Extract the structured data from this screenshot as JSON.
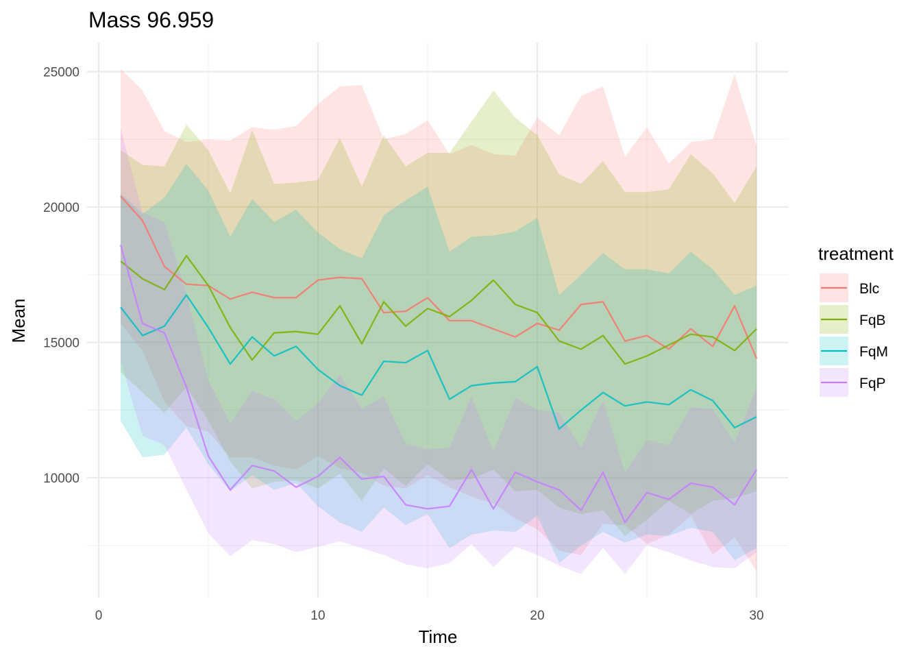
{
  "chart_data": {
    "type": "line",
    "title": "Mass 96.959",
    "xlabel": "Time",
    "ylabel": "Mean",
    "xlim": [
      0,
      30
    ],
    "ylim": [
      6000,
      26000
    ],
    "x_ticks": [
      0,
      10,
      20,
      30
    ],
    "y_ticks": [
      10000,
      15000,
      20000,
      25000
    ],
    "grid": true,
    "legend_title": "treatment",
    "legend_position": "right",
    "x": [
      1,
      2,
      3,
      4,
      5,
      6,
      7,
      8,
      9,
      10,
      11,
      12,
      13,
      14,
      15,
      16,
      17,
      18,
      19,
      20,
      21,
      22,
      23,
      24,
      25,
      26,
      27,
      28,
      29,
      30
    ],
    "series": [
      {
        "name": "Blc",
        "color": "#F8766D",
        "mean": [
          20400,
          19500,
          17800,
          17150,
          17100,
          16600,
          16850,
          16650,
          16650,
          17300,
          17400,
          17350,
          16100,
          16150,
          16650,
          15800,
          15800,
          15500,
          15200,
          15700,
          15450,
          16400,
          16500,
          15050,
          15250,
          14750,
          15500,
          14850,
          16350,
          14400
        ],
        "upper": [
          25100,
          24300,
          22800,
          22400,
          22500,
          22450,
          22950,
          22850,
          22990,
          23800,
          24450,
          24500,
          22500,
          22700,
          23200,
          21950,
          22300,
          21950,
          21900,
          23300,
          22650,
          24100,
          24450,
          21850,
          22950,
          21600,
          22400,
          22500,
          24900,
          22250
        ],
        "lower": [
          15700,
          14700,
          12800,
          11900,
          11700,
          10750,
          10750,
          10450,
          10300,
          10800,
          10350,
          10200,
          9700,
          9600,
          10100,
          9650,
          9300,
          9050,
          8500,
          8100,
          7300,
          7150,
          8300,
          8250,
          7550,
          7900,
          8600,
          7150,
          7800,
          6550
        ]
      },
      {
        "name": "FqB",
        "color": "#7CAE00",
        "mean": [
          18000,
          17350,
          16950,
          18200,
          17100,
          15550,
          14350,
          15350,
          15400,
          15300,
          16350,
          14950,
          16500,
          15600,
          16250,
          15950,
          16550,
          17300,
          16400,
          16100,
          15050,
          14750,
          15250,
          14200,
          14500,
          14900,
          15300,
          15200,
          14700,
          15500
        ],
        "upper": [
          22100,
          21550,
          21500,
          23050,
          22100,
          20500,
          22850,
          20850,
          20900,
          21000,
          22550,
          20750,
          22650,
          21500,
          22000,
          22000,
          23150,
          24300,
          23300,
          22650,
          21200,
          20850,
          21700,
          20550,
          20550,
          20650,
          21950,
          21250,
          20150,
          21500
        ],
        "lower": [
          13900,
          13150,
          12400,
          13350,
          12100,
          10600,
          9600,
          9850,
          9900,
          9600,
          10150,
          9150,
          10350,
          9700,
          10500,
          9900,
          9950,
          10300,
          9500,
          9550,
          8900,
          8650,
          8800,
          7850,
          8450,
          9150,
          8650,
          9150,
          9250,
          9500
        ]
      },
      {
        "name": "FqM",
        "color": "#00BFC4",
        "mean": [
          16300,
          15250,
          15600,
          16750,
          15550,
          14200,
          15200,
          14500,
          14850,
          14000,
          13400,
          13050,
          14300,
          14250,
          14700,
          12900,
          13400,
          13500,
          13550,
          14100,
          11800,
          12500,
          13150,
          12650,
          12800,
          12700,
          13250,
          12850,
          11850,
          12250
        ],
        "upper": [
          20500,
          19750,
          20350,
          21600,
          20600,
          18900,
          20300,
          19450,
          19900,
          19050,
          18450,
          18100,
          19700,
          20250,
          20750,
          18350,
          18900,
          18950,
          19100,
          19600,
          16750,
          17500,
          18300,
          17700,
          17700,
          17550,
          18350,
          17700,
          16750,
          17100
        ],
        "lower": [
          12100,
          10750,
          10850,
          11850,
          10500,
          9500,
          10100,
          9550,
          9800,
          8950,
          8350,
          8000,
          8900,
          8250,
          8650,
          7400,
          7900,
          8050,
          8000,
          8600,
          6850,
          7500,
          8000,
          7600,
          7900,
          7850,
          8150,
          8000,
          6950,
          7400
        ]
      },
      {
        "name": "FqP",
        "color": "#C77CFF",
        "mean": [
          18600,
          15700,
          15350,
          13350,
          10800,
          9550,
          10450,
          10250,
          9650,
          10050,
          10750,
          9950,
          10050,
          9000,
          8850,
          8950,
          10300,
          8850,
          10200,
          9850,
          9550,
          8800,
          10200,
          8350,
          9450,
          9200,
          9800,
          9650,
          9000,
          10300
        ],
        "upper": [
          22900,
          19800,
          19450,
          16800,
          13600,
          12000,
          13200,
          12900,
          12100,
          12750,
          13800,
          12550,
          13000,
          11250,
          11050,
          11100,
          13000,
          10950,
          12950,
          12500,
          12400,
          11100,
          12850,
          10200,
          11400,
          11200,
          12600,
          12550,
          11300,
          13350
        ],
        "lower": [
          14300,
          11550,
          11200,
          9550,
          7950,
          7100,
          7700,
          7550,
          7250,
          7450,
          7650,
          7400,
          7150,
          6800,
          6650,
          6850,
          7550,
          6700,
          7450,
          7150,
          6750,
          6450,
          7400,
          6450,
          7500,
          7250,
          6950,
          6700,
          6650,
          7250
        ]
      }
    ]
  }
}
